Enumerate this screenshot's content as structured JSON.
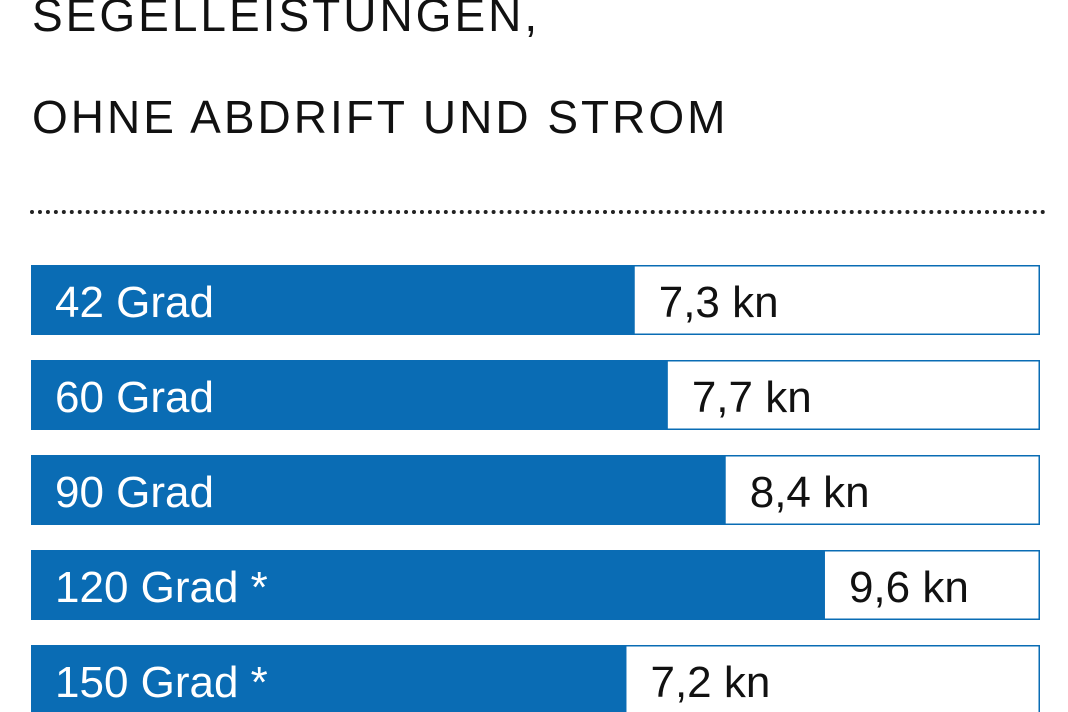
{
  "title_line_1": "SEGELLEISTUNGEN,",
  "title_line_2": "OHNE ABDRIFT UND STROM",
  "colors": {
    "bar": "#0a6cb4",
    "text_on_bar": "#ffffff",
    "value_text": "#111111",
    "background": "#ffffff"
  },
  "chart_data": {
    "type": "bar",
    "orientation": "horizontal",
    "categories": [
      "42 Grad",
      "60 Grad",
      "90 Grad",
      "120 Grad *",
      "150 Grad *"
    ],
    "values": [
      7.3,
      7.7,
      8.4,
      9.6,
      7.2
    ],
    "value_labels": [
      "7,3 kn",
      "7,7 kn",
      "8,4 kn",
      "9,6 kn",
      "7,2 kn"
    ],
    "xlim": [
      0,
      12.2
    ]
  }
}
